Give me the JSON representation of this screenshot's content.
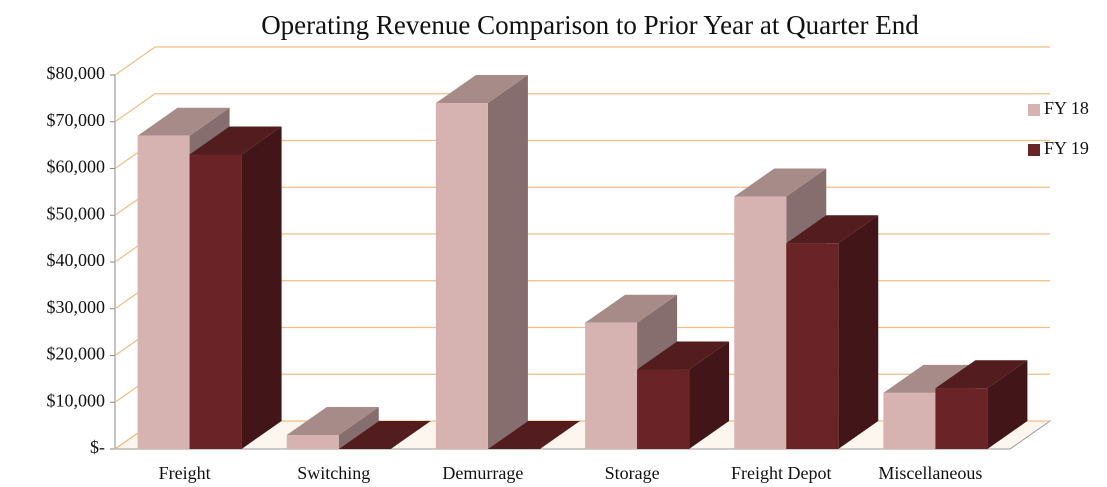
{
  "chart_data": {
    "type": "bar3d",
    "title": "Operating Revenue Comparison to Prior Year at Quarter End",
    "categories": [
      "Freight",
      "Switching",
      "Demurrage",
      "Storage",
      "Freight Depot",
      "Miscellaneous"
    ],
    "series": [
      {
        "name": "FY 18",
        "color": "#d6b2b0",
        "values": [
          67000,
          3000,
          74000,
          27000,
          54000,
          12000
        ]
      },
      {
        "name": "FY 19",
        "color": "#6a2427",
        "values": [
          63000,
          0,
          0,
          17000,
          44000,
          13000
        ]
      }
    ],
    "ylim": [
      0,
      80000
    ],
    "yticks": [
      {
        "value": 0,
        "label": "$-"
      },
      {
        "value": 10000,
        "label": "$10,000"
      },
      {
        "value": 20000,
        "label": "$20,000"
      },
      {
        "value": 30000,
        "label": "$30,000"
      },
      {
        "value": 40000,
        "label": "$40,000"
      },
      {
        "value": 50000,
        "label": "$50,000"
      },
      {
        "value": 60000,
        "label": "$60,000"
      },
      {
        "value": 70000,
        "label": "$70,000"
      },
      {
        "value": 80000,
        "label": "$80,000"
      }
    ],
    "grid": true,
    "legend": "right"
  }
}
